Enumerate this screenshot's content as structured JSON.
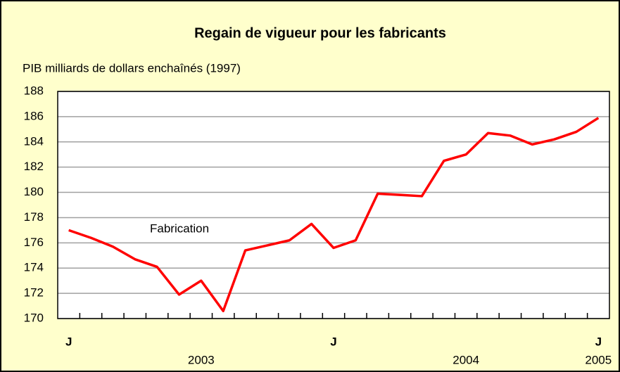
{
  "chart_data": {
    "type": "line",
    "title": "Regain de vigueur pour les fabricants",
    "y_axis_label": "PIB milliards de dollars enchaînés (1997)",
    "categories": [
      "J",
      null,
      null,
      null,
      null,
      null,
      null,
      null,
      null,
      null,
      null,
      null,
      "J",
      null,
      null,
      null,
      null,
      null,
      null,
      null,
      null,
      null,
      null,
      null,
      "J"
    ],
    "year_labels": [
      "2003",
      "2004",
      "2005"
    ],
    "series": [
      {
        "name": "Fabrication",
        "color": "#ff0000",
        "values": [
          177.0,
          176.4,
          175.7,
          174.7,
          174.1,
          171.9,
          173.0,
          170.6,
          175.4,
          175.8,
          176.2,
          177.5,
          175.6,
          176.2,
          179.9,
          179.8,
          179.7,
          182.5,
          183.0,
          184.7,
          184.5,
          183.8,
          184.2,
          184.8,
          185.9
        ]
      }
    ],
    "ylim": [
      170,
      188
    ],
    "yticks": [
      170,
      172,
      174,
      176,
      178,
      180,
      182,
      184,
      186,
      188
    ],
    "grid": true
  }
}
